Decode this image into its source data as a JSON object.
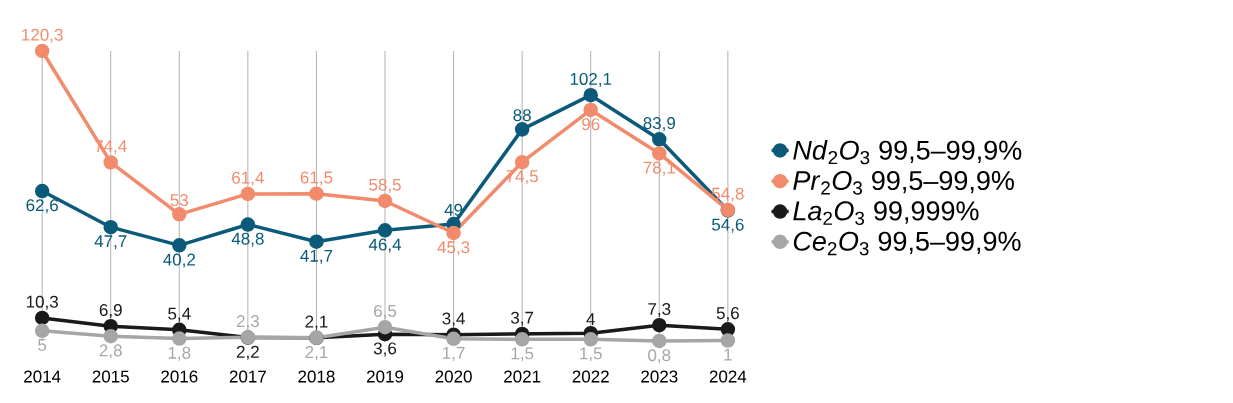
{
  "chart_data": {
    "type": "line",
    "categories": [
      "2014",
      "2015",
      "2016",
      "2017",
      "2018",
      "2019",
      "2020",
      "2021",
      "2022",
      "2023",
      "2024"
    ],
    "series": [
      {
        "name": "*Nd*$_{2}$*O*$_{3}$ 99,5–99,9%",
        "color": "#0b5a7a",
        "values": [
          62.6,
          47.7,
          40.2,
          48.8,
          41.7,
          46.4,
          49,
          88,
          102.1,
          83.9,
          54.6
        ],
        "value_labels": [
          "62,6",
          "47,7",
          "40,2",
          "48,8",
          "41,7",
          "46,4",
          "49",
          "88",
          "102,1",
          "83,9",
          "54,6"
        ]
      },
      {
        "name": "*Pr*$_{2}$*O*$_{3}$ 99,5–99,9%",
        "color": "#f28a6c",
        "values": [
          120.3,
          74.4,
          53,
          61.4,
          61.5,
          58.5,
          45.3,
          74.5,
          96,
          78.1,
          54.8
        ],
        "value_labels": [
          "120,3",
          "74,4",
          "53",
          "61,4",
          "61,5",
          "58,5",
          "45,3",
          "74,5",
          "96",
          "78,1",
          "54,8"
        ]
      },
      {
        "name": "*La*$_{2}$*O*$_{3}$ 99,999%",
        "color": "#1a1a1a",
        "values": [
          10.3,
          6.9,
          5.4,
          2.2,
          2.1,
          3.6,
          3.4,
          3.7,
          4,
          7.3,
          5.6
        ],
        "value_labels": [
          "10,3",
          "6,9",
          "5,4",
          "2,2",
          "2,1",
          "3,6",
          "3,4",
          "3,7",
          "4",
          "7,3",
          "5,6"
        ]
      },
      {
        "name": "*Ce*$_{2}$*O*$_{3}$ 99,5–99,9%",
        "color": "#a6a6a6",
        "values": [
          5,
          2.8,
          1.8,
          2.3,
          2.1,
          6.5,
          1.7,
          1.5,
          1.5,
          0.8,
          1
        ],
        "value_labels": [
          "5",
          "2,8",
          "1,8",
          "2,3",
          "2,1",
          "6,5",
          "1,7",
          "1,5",
          "1,5",
          "0,8",
          "1"
        ]
      }
    ],
    "grid": "x",
    "legend": "right",
    "marker": "circle",
    "line_style": "solid"
  }
}
